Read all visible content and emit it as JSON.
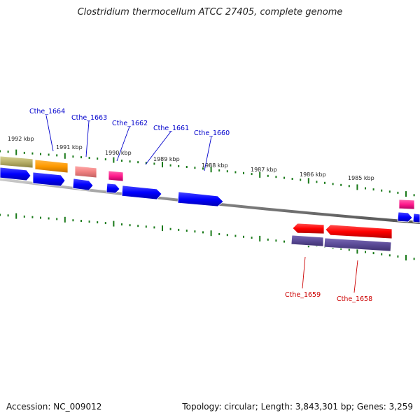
{
  "title": "Clostridium thermocellum ATCC 27405, complete genome",
  "footer": {
    "accession": "Accession: NC_009012",
    "summary": "Topology: circular; Length: 3,843,301 bp; Genes: 3,259"
  },
  "colors": {
    "plus_label": "#0000cc",
    "minus_label": "#cc0000",
    "tick": "#1a7a1a",
    "backbone": "#888888",
    "cds": "#0000ff",
    "rna_red": "#ff0000",
    "purple": "#5a4a96"
  },
  "scale_labels": [
    "1992 kbp",
    "1991 kbp",
    "1990 kbp",
    "1989 kbp",
    "1988 kbp",
    "1987 kbp",
    "1986 kbp",
    "1985 kbp"
  ],
  "genes_plus": [
    "Cthe_1664",
    "Cthe_1663",
    "Cthe_1662",
    "Cthe_1661",
    "Cthe_1660"
  ],
  "genes_minus": [
    "Cthe_1659",
    "Cthe_1658"
  ]
}
